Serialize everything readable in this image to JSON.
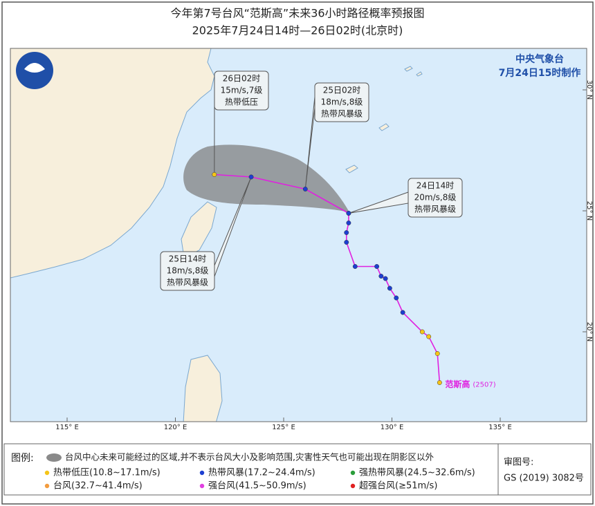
{
  "header": {
    "title": "今年第7号台风“范斯高”未来36小时路径概率预报图",
    "subtitle": "2025年7月24日14时—26日02时(北京时)"
  },
  "agency": {
    "name": "中央气象台",
    "made": "7月24日15时制作"
  },
  "map": {
    "lonticks": [
      {
        "value": 115,
        "label": "115° E"
      },
      {
        "value": 120,
        "label": "120° E"
      },
      {
        "value": 125,
        "label": "125° E"
      },
      {
        "value": 130,
        "label": "130° E"
      },
      {
        "value": 135,
        "label": "135° E"
      }
    ],
    "latticks": [
      {
        "value": 20,
        "label": "20° N"
      },
      {
        "value": 25,
        "label": "25° N"
      },
      {
        "value": 30,
        "label": "30° N"
      }
    ],
    "track": {
      "lon": [
        132.2,
        132.1,
        131.7,
        131.4,
        130.5,
        130.2,
        129.9,
        129.7,
        129.5,
        129.3,
        128.3,
        127.9,
        127.9,
        128.0,
        128.0
      ],
      "lat": [
        17.9,
        19.1,
        19.8,
        20.0,
        20.8,
        21.4,
        21.8,
        22.2,
        22.3,
        22.7,
        22.7,
        23.7,
        24.1,
        24.5,
        24.9
      ],
      "colors": [
        "#f5c518",
        "#f5c518",
        "#f5c518",
        "#f5c518",
        "#1d3fd1",
        "#1d3fd1",
        "#1d3fd1",
        "#1d3fd1",
        "#1d3fd1",
        "#1d3fd1",
        "#1d3fd1",
        "#1d3fd1",
        "#1d3fd1",
        "#1d3fd1",
        "#1d3fd1"
      ]
    },
    "forecast": {
      "lon": [
        128.0,
        126.0,
        123.5,
        121.8
      ],
      "lat": [
        24.9,
        25.9,
        26.4,
        26.5
      ],
      "colors": [
        "#1d3fd1",
        "#1d3fd1",
        "#1d3fd1",
        "#f5c518"
      ]
    },
    "callouts": [
      {
        "time": "24日14时",
        "wind": "20m/s,8级",
        "level": "热带风暴级"
      },
      {
        "time": "25日02时",
        "wind": "18m/s,8级",
        "level": "热带风暴级"
      },
      {
        "time": "25日14时",
        "wind": "18m/s,8级",
        "level": "热带风暴级"
      },
      {
        "time": "26日02时",
        "wind": "15m/s,7级",
        "level": "热带低压"
      }
    ],
    "storm_name": "范斯高",
    "storm_id": "(2507)"
  },
  "legend": {
    "title": "图例:",
    "cone": "台风中心未来可能经过的区域,并不表示台风大小及影响范围,灾害性天气也可能出现在阴影区以外",
    "items": [
      {
        "label": "热带低压(10.8~17.1m/s)",
        "color": "#f5c518"
      },
      {
        "label": "热带风暴(17.2~24.4m/s)",
        "color": "#1d3fd1"
      },
      {
        "label": "强热带风暴(24.5~32.6m/s)",
        "color": "#2a9d3a"
      },
      {
        "label": "台风(32.7~41.4m/s)",
        "color": "#f39c3f"
      },
      {
        "label": "强台风(41.5~50.9m/s)",
        "color": "#e040e0"
      },
      {
        "label": "超强台风(≥51m/s)",
        "color": "#e02020"
      }
    ]
  },
  "review": {
    "label": "审图号:",
    "number": "GS (2019) 3082号"
  }
}
